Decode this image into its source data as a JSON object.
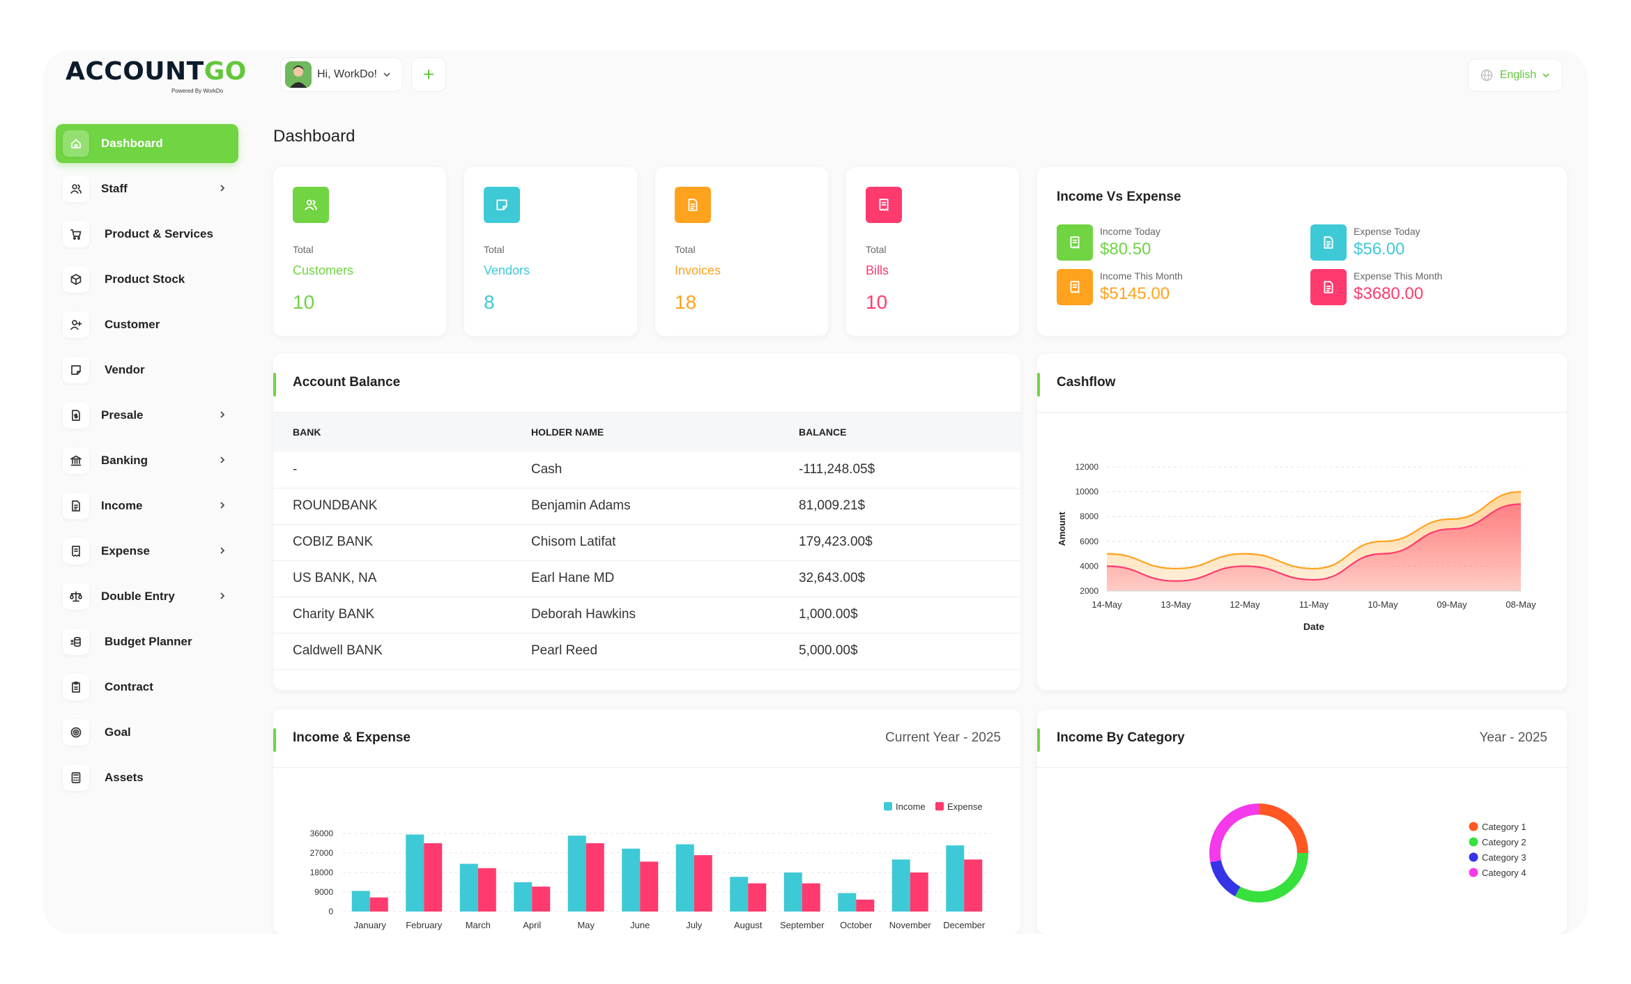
{
  "brand": {
    "name_main": "ACCOUNT",
    "name_accent": "GO",
    "tagline": "Powered By WorkDo"
  },
  "header": {
    "user_greeting": "Hi, WorkDo!",
    "language": "English",
    "page_title": "Dashboard"
  },
  "sidebar": {
    "items": [
      {
        "label": "Dashboard",
        "icon": "home-icon",
        "active": true,
        "has_submenu": false
      },
      {
        "label": "Staff",
        "icon": "users-icon",
        "has_submenu": true
      },
      {
        "label": "Product & Services",
        "icon": "cart-icon",
        "has_submenu": false
      },
      {
        "label": "Product Stock",
        "icon": "box-icon",
        "has_submenu": false
      },
      {
        "label": "Customer",
        "icon": "user-plus-icon",
        "has_submenu": false
      },
      {
        "label": "Vendor",
        "icon": "note-icon",
        "has_submenu": false
      },
      {
        "label": "Presale",
        "icon": "file-dollar-icon",
        "has_submenu": true
      },
      {
        "label": "Banking",
        "icon": "bank-icon",
        "has_submenu": true
      },
      {
        "label": "Income",
        "icon": "file-text-icon",
        "has_submenu": true
      },
      {
        "label": "Expense",
        "icon": "receipt-icon",
        "has_submenu": true
      },
      {
        "label": "Double Entry",
        "icon": "scale-icon",
        "has_submenu": true
      },
      {
        "label": "Budget Planner",
        "icon": "coins-icon",
        "has_submenu": false
      },
      {
        "label": "Contract",
        "icon": "contract-icon",
        "has_submenu": false
      },
      {
        "label": "Goal",
        "icon": "target-icon",
        "has_submenu": false
      },
      {
        "label": "Assets",
        "icon": "calculator-icon",
        "has_submenu": false
      }
    ]
  },
  "stats": [
    {
      "total_label": "Total",
      "name": "Customers",
      "value": "10",
      "color": "#70d443",
      "icon": "users-icon"
    },
    {
      "total_label": "Total",
      "name": "Vendors",
      "value": "8",
      "color": "#3ec9d6",
      "icon": "note-icon"
    },
    {
      "total_label": "Total",
      "name": "Invoices",
      "value": "18",
      "color": "#ffa21d",
      "icon": "file-text-icon"
    },
    {
      "total_label": "Total",
      "name": "Bills",
      "value": "10",
      "color": "#ff3a6e",
      "icon": "receipt-icon"
    }
  ],
  "income_vs_expense": {
    "title": "Income Vs Expense",
    "items": [
      {
        "label": "Income Today",
        "amount": "$80.50",
        "color": "#70d443"
      },
      {
        "label": "Expense Today",
        "amount": "$56.00",
        "color": "#3ec9d6"
      },
      {
        "label": "Income This Month",
        "amount": "$5145.00",
        "color": "#ffa21d"
      },
      {
        "label": "Expense This Month",
        "amount": "$3680.00",
        "color": "#ff3a6e"
      }
    ]
  },
  "account_balance": {
    "title": "Account Balance",
    "columns": [
      "BANK",
      "HOLDER NAME",
      "BALANCE"
    ],
    "rows": [
      [
        "-",
        "Cash",
        "-111,248.05$"
      ],
      [
        "ROUNDBANK",
        "Benjamin Adams",
        "81,009.21$"
      ],
      [
        "COBIZ BANK",
        "Chisom Latifat",
        "179,423.00$"
      ],
      [
        "US BANK, NA",
        "Earl Hane MD",
        "32,643.00$"
      ],
      [
        "Charity BANK",
        "Deborah Hawkins",
        "1,000.00$"
      ],
      [
        "Caldwell BANK",
        "Pearl Reed",
        "5,000.00$"
      ]
    ]
  },
  "cashflow": {
    "title": "Cashflow",
    "chart_data": {
      "type": "area",
      "x": [
        "14-May",
        "13-May",
        "12-May",
        "11-May",
        "10-May",
        "09-May",
        "08-May"
      ],
      "xlabel": "Date",
      "ylabel": "Amount",
      "ylim": [
        2000,
        12000
      ],
      "yticks": [
        2000,
        4000,
        6000,
        8000,
        10000,
        12000
      ],
      "series": [
        {
          "values": [
            5000,
            3800,
            5000,
            3800,
            6000,
            7800,
            10000
          ],
          "color": "#ffa21d"
        },
        {
          "values": [
            4000,
            2800,
            4000,
            2900,
            5000,
            7000,
            9000
          ],
          "color": "#ff3a6e"
        }
      ]
    }
  },
  "income_expense": {
    "title": "Income & Expense",
    "subtitle": "Current Year - 2025",
    "chart_data": {
      "type": "bar",
      "categories": [
        "January",
        "February",
        "March",
        "April",
        "May",
        "June",
        "July",
        "August",
        "September",
        "October",
        "November",
        "December"
      ],
      "ylim": [
        0,
        36000
      ],
      "yticks": [
        0,
        9000,
        18000,
        27000,
        36000
      ],
      "series": [
        {
          "name": "Income",
          "color": "#3ec9d6",
          "values": [
            9500,
            35500,
            22000,
            13500,
            35000,
            29000,
            31000,
            16000,
            18000,
            8500,
            24000,
            30500
          ]
        },
        {
          "name": "Expense",
          "color": "#ff3a6e",
          "values": [
            6500,
            31500,
            20000,
            11500,
            31500,
            23000,
            26000,
            13000,
            13000,
            5500,
            18000,
            24000
          ]
        }
      ]
    }
  },
  "income_by_category": {
    "title": "Income By Category",
    "subtitle": "Year - 2025",
    "chart_data": {
      "type": "pie",
      "labels": [
        "Category 1",
        "Category 2",
        "Category 3",
        "Category 4"
      ],
      "values": [
        25,
        33,
        14,
        28
      ],
      "colors": [
        "#ff5722",
        "#38e03e",
        "#3535e6",
        "#f53aeb"
      ]
    }
  }
}
